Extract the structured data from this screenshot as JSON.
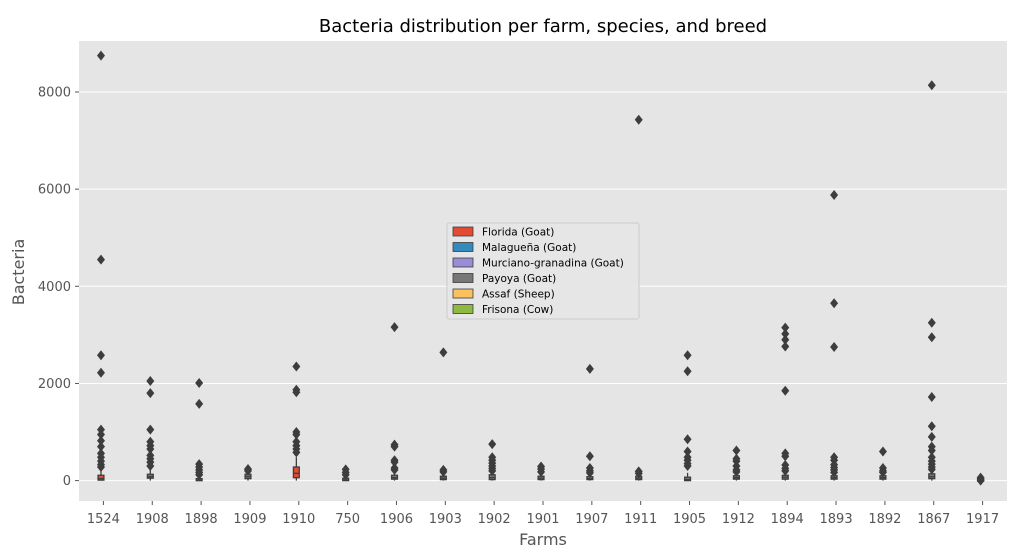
{
  "chart_data": {
    "type": "box",
    "title": "Bacteria distribution per farm, species, and breed",
    "xlabel": "Farms",
    "ylabel": "Bacteria",
    "ylim": [
      -420,
      9050
    ],
    "yticks": [
      0,
      2000,
      4000,
      6000,
      8000
    ],
    "grid": true,
    "legend_position": "center",
    "categories": [
      "1524",
      "1908",
      "1898",
      "1909",
      "1910",
      "750",
      "1906",
      "1903",
      "1902",
      "1901",
      "1907",
      "1911",
      "1905",
      "1912",
      "1894",
      "1893",
      "1892",
      "1867",
      "1917"
    ],
    "series": [
      {
        "name": "Florida (Goat)",
        "color": "#E24A33"
      },
      {
        "name": "Malagueña (Goat)",
        "color": "#348ABD"
      },
      {
        "name": "Murciano-granadina (Goat)",
        "color": "#988ED5"
      },
      {
        "name": "Payoya (Goat)",
        "color": "#777777"
      },
      {
        "name": "Assaf (Sheep)",
        "color": "#FBC15E"
      },
      {
        "name": "Frisona (Cow)",
        "color": "#8EBA42"
      }
    ],
    "boxes": [
      {
        "category": "1524",
        "series": "Florida (Goat)",
        "q1": 10,
        "median": 40,
        "q3": 110,
        "whisker_low": 0,
        "whisker_high": 200,
        "outliers": [
          8750,
          4550,
          2580,
          2220,
          1050,
          950,
          820,
          700,
          560,
          480,
          400,
          330,
          280
        ]
      },
      {
        "category": "1908",
        "series": "Payoya (Goat)",
        "q1": 50,
        "median": 80,
        "q3": 130,
        "whisker_low": 0,
        "whisker_high": 220,
        "outliers": [
          2050,
          1800,
          1050,
          800,
          720,
          650,
          520,
          450,
          380,
          300
        ]
      },
      {
        "category": "1898",
        "series": "Payoya (Goat)",
        "q1": 0,
        "median": 10,
        "q3": 40,
        "whisker_low": 0,
        "whisker_high": 90,
        "outliers": [
          2010,
          1580,
          340,
          280,
          220,
          170,
          120
        ]
      },
      {
        "category": "1909",
        "series": "Payoya (Goat)",
        "q1": 40,
        "median": 80,
        "q3": 130,
        "whisker_low": 0,
        "whisker_high": 180,
        "outliers": [
          240,
          200
        ]
      },
      {
        "category": "1910",
        "series": "Florida (Goat)",
        "q1": 60,
        "median": 150,
        "q3": 280,
        "whisker_low": 0,
        "whisker_high": 480,
        "outliers": [
          2350,
          1870,
          1820,
          1000,
          950,
          800,
          720,
          650,
          580
        ]
      },
      {
        "category": "750",
        "series": "Payoya (Goat)",
        "q1": 0,
        "median": 15,
        "q3": 50,
        "whisker_low": 0,
        "whisker_high": 100,
        "outliers": [
          230,
          170,
          120
        ]
      },
      {
        "category": "1906",
        "series": "Payoya (Goat)",
        "q1": 30,
        "median": 60,
        "q3": 110,
        "whisker_low": 0,
        "whisker_high": 170,
        "outliers": [
          3160,
          740,
          700,
          420,
          380,
          260,
          220
        ]
      },
      {
        "category": "1903",
        "series": "Payoya (Goat)",
        "q1": 20,
        "median": 50,
        "q3": 90,
        "whisker_low": 0,
        "whisker_high": 140,
        "outliers": [
          2640,
          220,
          180
        ]
      },
      {
        "category": "1902",
        "series": "Payoya (Goat)",
        "q1": 20,
        "median": 60,
        "q3": 120,
        "whisker_low": 0,
        "whisker_high": 180,
        "outliers": [
          750,
          480,
          420,
          360,
          300,
          250,
          200
        ]
      },
      {
        "category": "1901",
        "series": "Payoya (Goat)",
        "q1": 20,
        "median": 50,
        "q3": 90,
        "whisker_low": 0,
        "whisker_high": 140,
        "outliers": [
          290,
          240,
          180
        ]
      },
      {
        "category": "1907",
        "series": "Payoya (Goat)",
        "q1": 20,
        "median": 40,
        "q3": 80,
        "whisker_low": 0,
        "whisker_high": 120,
        "outliers": [
          2300,
          500,
          260,
          200,
          160
        ]
      },
      {
        "category": "1911",
        "series": "Payoya (Goat)",
        "q1": 20,
        "median": 50,
        "q3": 90,
        "whisker_low": 0,
        "whisker_high": 120,
        "outliers": [
          7430,
          190,
          150
        ]
      },
      {
        "category": "1905",
        "series": "Payoya (Goat)",
        "q1": 0,
        "median": 20,
        "q3": 70,
        "whisker_low": 0,
        "whisker_high": 160,
        "outliers": [
          2580,
          2250,
          850,
          600,
          480,
          420,
          350,
          300
        ]
      },
      {
        "category": "1912",
        "series": "Payoya (Goat)",
        "q1": 30,
        "median": 60,
        "q3": 100,
        "whisker_low": 0,
        "whisker_high": 150,
        "outliers": [
          620,
          450,
          400,
          300,
          220,
          180
        ]
      },
      {
        "category": "1894",
        "series": "Payoya (Goat)",
        "q1": 30,
        "median": 70,
        "q3": 110,
        "whisker_low": 0,
        "whisker_high": 160,
        "outliers": [
          3150,
          3020,
          2900,
          2760,
          1850,
          560,
          500,
          320,
          250,
          200
        ]
      },
      {
        "category": "1893",
        "series": "Payoya (Goat)",
        "q1": 30,
        "median": 60,
        "q3": 100,
        "whisker_low": 0,
        "whisker_high": 150,
        "outliers": [
          5880,
          3650,
          2750,
          480,
          420,
          330,
          270,
          220,
          170
        ]
      },
      {
        "category": "1892",
        "series": "Payoya (Goat)",
        "q1": 30,
        "median": 60,
        "q3": 100,
        "whisker_low": 0,
        "whisker_high": 140,
        "outliers": [
          600,
          260,
          200,
          170
        ]
      },
      {
        "category": "1867",
        "series": "Payoya (Goat)",
        "q1": 40,
        "median": 80,
        "q3": 140,
        "whisker_low": 0,
        "whisker_high": 200,
        "outliers": [
          8140,
          3250,
          2950,
          1720,
          1120,
          900,
          700,
          620,
          480,
          400,
          340,
          280,
          230
        ]
      },
      {
        "category": "1917",
        "series": "Payoya (Goat)",
        "q1": 0,
        "median": 0,
        "q3": 30,
        "whisker_low": 0,
        "whisker_high": 60,
        "outliers": [
          60,
          30,
          0
        ]
      }
    ]
  }
}
